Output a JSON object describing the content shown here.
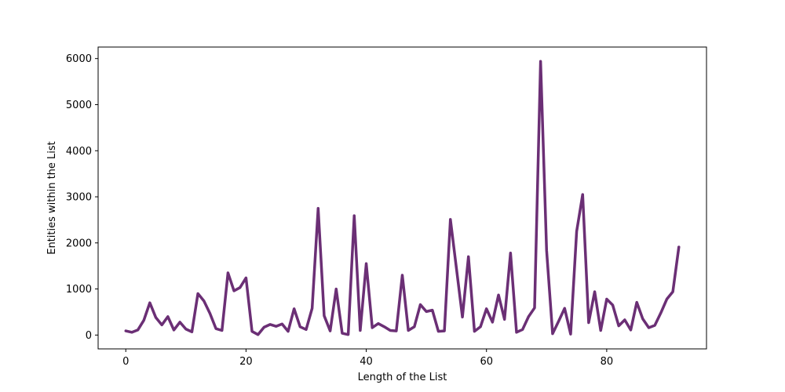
{
  "chart_data": {
    "type": "line",
    "title": "",
    "xlabel": "Length of the List",
    "ylabel": "Entities within the List",
    "xlim": [
      -4.6,
      96.6
    ],
    "ylim": [
      -300,
      6250
    ],
    "xticks": [
      0,
      20,
      40,
      60,
      80
    ],
    "yticks": [
      0,
      1000,
      2000,
      3000,
      4000,
      5000,
      6000
    ],
    "grid": false,
    "legend": "none",
    "line_color": "#6b2f75",
    "x": [
      0,
      1,
      2,
      3,
      4,
      5,
      6,
      7,
      8,
      9,
      10,
      11,
      12,
      13,
      14,
      15,
      16,
      17,
      18,
      19,
      20,
      21,
      22,
      23,
      24,
      25,
      26,
      27,
      28,
      29,
      30,
      31,
      32,
      33,
      34,
      35,
      36,
      37,
      38,
      39,
      40,
      41,
      42,
      43,
      44,
      45,
      46,
      47,
      48,
      49,
      50,
      51,
      52,
      53,
      54,
      55,
      56,
      57,
      58,
      59,
      60,
      61,
      62,
      63,
      64,
      65,
      66,
      67,
      68,
      69,
      70,
      71,
      72,
      73,
      74,
      75,
      76,
      77,
      78,
      79,
      80,
      81,
      82,
      83,
      84,
      85,
      86,
      87,
      88,
      89,
      90,
      91,
      92
    ],
    "y": [
      90,
      60,
      110,
      320,
      700,
      380,
      220,
      400,
      110,
      280,
      130,
      70,
      900,
      740,
      470,
      140,
      100,
      1350,
      960,
      1030,
      1240,
      80,
      10,
      170,
      230,
      190,
      240,
      80,
      570,
      180,
      120,
      580,
      2750,
      420,
      90,
      1000,
      40,
      10,
      2590,
      100,
      1550,
      160,
      250,
      180,
      100,
      90,
      1300,
      100,
      180,
      660,
      510,
      540,
      80,
      90,
      2510,
      1450,
      390,
      1700,
      80,
      180,
      570,
      280,
      870,
      340,
      1780,
      60,
      120,
      400,
      590,
      5940,
      1840,
      30,
      300,
      580,
      20,
      2250,
      3050,
      270,
      940,
      100,
      780,
      650,
      200,
      330,
      110,
      710,
      350,
      160,
      210,
      480,
      780,
      940,
      1910
    ]
  }
}
